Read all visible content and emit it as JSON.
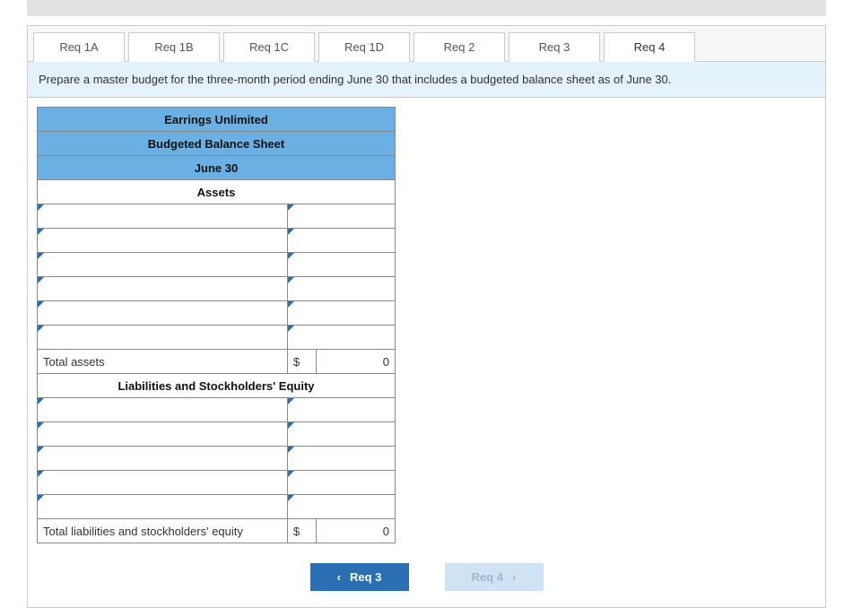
{
  "tabs": [
    {
      "label": "Req 1A",
      "active": false
    },
    {
      "label": "Req 1B",
      "active": false
    },
    {
      "label": "Req 1C",
      "active": false
    },
    {
      "label": "Req 1D",
      "active": false
    },
    {
      "label": "Req 2",
      "active": false
    },
    {
      "label": "Req 3",
      "active": false
    },
    {
      "label": "Req 4",
      "active": true
    }
  ],
  "instruction": "Prepare a master budget for the three-month period ending June 30 that includes a budgeted balance sheet as of June 30.",
  "sheet": {
    "company": "Earrings Unlimited",
    "title": "Budgeted Balance Sheet",
    "date": "June 30",
    "section_assets": "Assets",
    "section_liab": "Liabilities and Stockholders' Equity",
    "asset_rows": [
      "",
      "",
      "",
      "",
      "",
      ""
    ],
    "total_assets_label": "Total assets",
    "total_assets_currency": "$",
    "total_assets_value": "0",
    "liab_rows": [
      "",
      "",
      "",
      "",
      ""
    ],
    "total_liab_label": "Total liabilities and stockholders' equity",
    "total_liab_currency": "$",
    "total_liab_value": "0"
  },
  "nav": {
    "prev": "Req 3",
    "next": "Req 4"
  },
  "colors": {
    "header_blue": "#6ab0e2",
    "instruction_bg": "#e4f2fb",
    "nav_prev_bg": "#2b6fb3",
    "nav_next_bg": "#cfe3f5",
    "border": "#8a8a8a"
  }
}
